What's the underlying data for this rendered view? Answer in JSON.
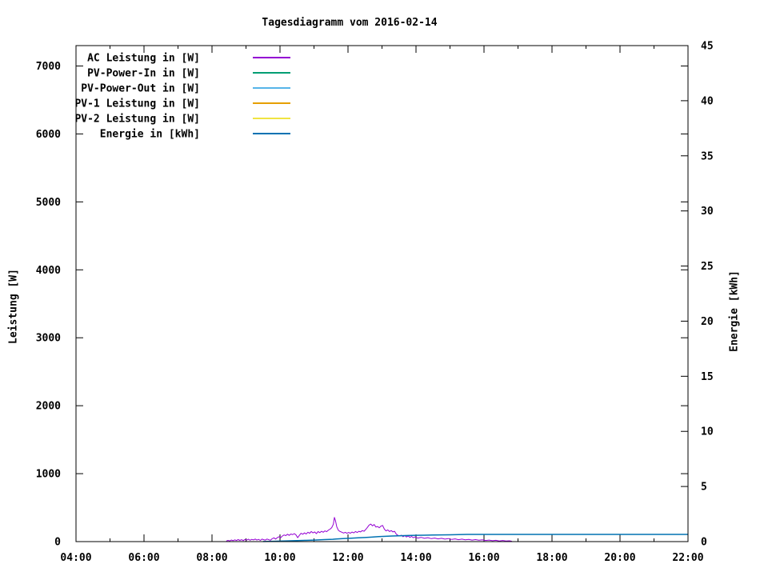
{
  "window": {
    "background": "#ffffff",
    "text_color": "#000000",
    "border_color": "#000000"
  },
  "chart_data": {
    "type": "line",
    "title": "Tagesdiagramm vom 2016-02-14",
    "xlabel": "",
    "ylabel": "Leistung [W]",
    "y2label": "Energie [kWh]",
    "grid": false,
    "legend_position": "top-left-inside",
    "x_range": [
      4,
      22
    ],
    "y_range": [
      0,
      7300
    ],
    "y2_range": [
      0,
      45
    ],
    "x_ticks": [
      {
        "hour": 4,
        "label": "04:00"
      },
      {
        "hour": 6,
        "label": "06:00"
      },
      {
        "hour": 8,
        "label": "08:00"
      },
      {
        "hour": 10,
        "label": "10:00"
      },
      {
        "hour": 12,
        "label": "12:00"
      },
      {
        "hour": 14,
        "label": "14:00"
      },
      {
        "hour": 16,
        "label": "16:00"
      },
      {
        "hour": 18,
        "label": "18:00"
      },
      {
        "hour": 20,
        "label": "20:00"
      },
      {
        "hour": 22,
        "label": "22:00"
      }
    ],
    "x_minor_hours": [
      5,
      7,
      9,
      11,
      13,
      15,
      17,
      19,
      21
    ],
    "y_ticks": [
      {
        "value": 0,
        "label": "0"
      },
      {
        "value": 1000,
        "label": "1000"
      },
      {
        "value": 2000,
        "label": "2000"
      },
      {
        "value": 3000,
        "label": "3000"
      },
      {
        "value": 4000,
        "label": "4000"
      },
      {
        "value": 5000,
        "label": "5000"
      },
      {
        "value": 6000,
        "label": "6000"
      },
      {
        "value": 7000,
        "label": "7000"
      }
    ],
    "y2_ticks": [
      {
        "value": 0,
        "label": "0"
      },
      {
        "value": 5,
        "label": "5"
      },
      {
        "value": 10,
        "label": "10"
      },
      {
        "value": 15,
        "label": "15"
      },
      {
        "value": 20,
        "label": "20"
      },
      {
        "value": 25,
        "label": "25"
      },
      {
        "value": 30,
        "label": "30"
      },
      {
        "value": 35,
        "label": "35"
      },
      {
        "value": 40,
        "label": "40"
      },
      {
        "value": 45,
        "label": "45"
      }
    ],
    "series": [
      {
        "name": "AC Leistung in [W]",
        "color": "#9400d3",
        "axis": "y1",
        "points": [
          [
            8.42,
            8
          ],
          [
            8.47,
            18
          ],
          [
            8.52,
            10
          ],
          [
            8.57,
            24
          ],
          [
            8.62,
            14
          ],
          [
            8.67,
            26
          ],
          [
            8.72,
            16
          ],
          [
            8.77,
            30
          ],
          [
            8.82,
            18
          ],
          [
            8.87,
            28
          ],
          [
            8.92,
            15
          ],
          [
            8.97,
            32
          ],
          [
            9.02,
            22
          ],
          [
            9.07,
            35
          ],
          [
            9.12,
            20
          ],
          [
            9.17,
            33
          ],
          [
            9.22,
            25
          ],
          [
            9.27,
            38
          ],
          [
            9.32,
            22
          ],
          [
            9.37,
            33
          ],
          [
            9.42,
            18
          ],
          [
            9.47,
            36
          ],
          [
            9.52,
            28
          ],
          [
            9.57,
            22
          ],
          [
            9.62,
            38
          ],
          [
            9.67,
            28
          ],
          [
            9.72,
            20
          ],
          [
            9.77,
            42
          ],
          [
            9.82,
            55
          ],
          [
            9.87,
            38
          ],
          [
            9.92,
            58
          ],
          [
            9.97,
            72
          ],
          [
            10.02,
            58
          ],
          [
            10.07,
            82
          ],
          [
            10.12,
            98
          ],
          [
            10.17,
            88
          ],
          [
            10.22,
            108
          ],
          [
            10.27,
            92
          ],
          [
            10.32,
            112
          ],
          [
            10.37,
            102
          ],
          [
            10.42,
            118
          ],
          [
            10.47,
            98
          ],
          [
            10.52,
            58
          ],
          [
            10.57,
            92
          ],
          [
            10.62,
            122
          ],
          [
            10.67,
            108
          ],
          [
            10.72,
            128
          ],
          [
            10.77,
            112
          ],
          [
            10.82,
            138
          ],
          [
            10.87,
            122
          ],
          [
            10.92,
            148
          ],
          [
            10.97,
            128
          ],
          [
            11.02,
            142
          ],
          [
            11.07,
            118
          ],
          [
            11.12,
            148
          ],
          [
            11.17,
            132
          ],
          [
            11.22,
            152
          ],
          [
            11.27,
            138
          ],
          [
            11.32,
            158
          ],
          [
            11.37,
            146
          ],
          [
            11.42,
            168
          ],
          [
            11.47,
            182
          ],
          [
            11.52,
            205
          ],
          [
            11.57,
            255
          ],
          [
            11.6,
            355
          ],
          [
            11.63,
            310
          ],
          [
            11.67,
            215
          ],
          [
            11.72,
            165
          ],
          [
            11.77,
            148
          ],
          [
            11.82,
            138
          ],
          [
            11.87,
            126
          ],
          [
            11.92,
            136
          ],
          [
            11.97,
            122
          ],
          [
            12.02,
            134
          ],
          [
            12.07,
            124
          ],
          [
            12.12,
            140
          ],
          [
            12.17,
            128
          ],
          [
            12.22,
            148
          ],
          [
            12.27,
            134
          ],
          [
            12.32,
            152
          ],
          [
            12.37,
            142
          ],
          [
            12.42,
            162
          ],
          [
            12.47,
            152
          ],
          [
            12.52,
            178
          ],
          [
            12.57,
            208
          ],
          [
            12.62,
            242
          ],
          [
            12.67,
            258
          ],
          [
            12.72,
            232
          ],
          [
            12.77,
            252
          ],
          [
            12.82,
            214
          ],
          [
            12.87,
            222
          ],
          [
            12.92,
            204
          ],
          [
            12.97,
            228
          ],
          [
            13.02,
            238
          ],
          [
            13.07,
            182
          ],
          [
            13.12,
            158
          ],
          [
            13.17,
            172
          ],
          [
            13.22,
            148
          ],
          [
            13.27,
            162
          ],
          [
            13.32,
            142
          ],
          [
            13.37,
            152
          ],
          [
            13.42,
            108
          ],
          [
            13.47,
            92
          ],
          [
            13.52,
            82
          ],
          [
            13.57,
            94
          ],
          [
            13.62,
            72
          ],
          [
            13.67,
            88
          ],
          [
            13.72,
            68
          ],
          [
            13.77,
            82
          ],
          [
            13.82,
            62
          ],
          [
            13.87,
            76
          ],
          [
            13.92,
            58
          ],
          [
            13.97,
            68
          ],
          [
            14.05,
            52
          ],
          [
            14.15,
            62
          ],
          [
            14.25,
            48
          ],
          [
            14.35,
            58
          ],
          [
            14.45,
            44
          ],
          [
            14.55,
            52
          ],
          [
            14.65,
            40
          ],
          [
            14.75,
            48
          ],
          [
            14.85,
            36
          ],
          [
            14.95,
            45
          ],
          [
            15.05,
            32
          ],
          [
            15.15,
            40
          ],
          [
            15.25,
            28
          ],
          [
            15.35,
            36
          ],
          [
            15.45,
            26
          ],
          [
            15.55,
            33
          ],
          [
            15.65,
            22
          ],
          [
            15.75,
            30
          ],
          [
            15.85,
            20
          ],
          [
            15.95,
            26
          ],
          [
            16.05,
            16
          ],
          [
            16.15,
            22
          ],
          [
            16.25,
            13
          ],
          [
            16.35,
            19
          ],
          [
            16.45,
            10
          ],
          [
            16.55,
            16
          ],
          [
            16.65,
            8
          ],
          [
            16.75,
            12
          ],
          [
            16.82,
            5
          ]
        ]
      },
      {
        "name": "PV-Power-In in [W]",
        "color": "#009e73",
        "axis": "y1",
        "points": []
      },
      {
        "name": "PV-Power-Out in [W]",
        "color": "#56b4e9",
        "axis": "y1",
        "points": []
      },
      {
        "name": "PV-1 Leistung in [W]",
        "color": "#e69f00",
        "axis": "y1",
        "points": []
      },
      {
        "name": "PV-2 Leistung in [W]",
        "color": "#f0e442",
        "axis": "y1",
        "points": []
      },
      {
        "name": "Energie in [kWh]",
        "color": "#0072b2",
        "axis": "y2",
        "points": [
          [
            9.5,
            0.01
          ],
          [
            9.8,
            0.03
          ],
          [
            10.1,
            0.05
          ],
          [
            10.4,
            0.08
          ],
          [
            10.7,
            0.11
          ],
          [
            11.0,
            0.14
          ],
          [
            11.3,
            0.18
          ],
          [
            11.55,
            0.21
          ],
          [
            11.65,
            0.24
          ],
          [
            11.9,
            0.28
          ],
          [
            12.1,
            0.31
          ],
          [
            12.3,
            0.34
          ],
          [
            12.5,
            0.37
          ],
          [
            12.7,
            0.41
          ],
          [
            12.9,
            0.45
          ],
          [
            13.1,
            0.48
          ],
          [
            13.3,
            0.51
          ],
          [
            13.5,
            0.53
          ],
          [
            13.75,
            0.55
          ],
          [
            14.0,
            0.57
          ],
          [
            14.25,
            0.58
          ],
          [
            14.5,
            0.6
          ],
          [
            14.75,
            0.61
          ],
          [
            15.0,
            0.62
          ],
          [
            15.25,
            0.63
          ],
          [
            15.5,
            0.65
          ],
          [
            22.0,
            0.65
          ]
        ]
      }
    ]
  }
}
